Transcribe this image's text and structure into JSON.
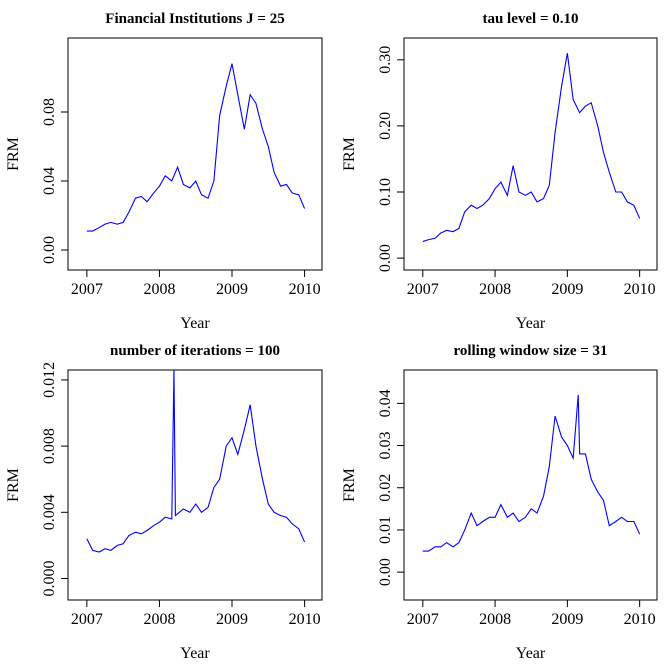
{
  "chart_data": [
    {
      "type": "line",
      "title": "Financial Institutions J = 25",
      "xlabel": "Year",
      "ylabel": "FRM",
      "color": "#0000ff",
      "x": [
        2007.0,
        2007.08,
        2007.17,
        2007.25,
        2007.33,
        2007.42,
        2007.5,
        2007.58,
        2007.67,
        2007.75,
        2007.83,
        2007.92,
        2008.0,
        2008.08,
        2008.17,
        2008.25,
        2008.33,
        2008.42,
        2008.5,
        2008.58,
        2008.67,
        2008.75,
        2008.83,
        2008.92,
        2009.0,
        2009.08,
        2009.17,
        2009.25,
        2009.33,
        2009.42,
        2009.5,
        2009.58,
        2009.67,
        2009.75,
        2009.83,
        2009.92,
        2010.0
      ],
      "values": [
        0.011,
        0.011,
        0.013,
        0.015,
        0.016,
        0.015,
        0.016,
        0.022,
        0.03,
        0.031,
        0.028,
        0.033,
        0.037,
        0.043,
        0.04,
        0.048,
        0.038,
        0.036,
        0.04,
        0.032,
        0.03,
        0.04,
        0.078,
        0.095,
        0.108,
        0.09,
        0.07,
        0.09,
        0.085,
        0.07,
        0.06,
        0.045,
        0.037,
        0.038,
        0.033,
        0.032,
        0.024
      ],
      "xlim": [
        2006.74,
        2010.24
      ],
      "ylim": [
        -0.0116,
        0.1229
      ],
      "xticks": [
        2007,
        2008,
        2009,
        2010
      ],
      "yticks": [
        {
          "value": 0,
          "label": "0.00"
        },
        {
          "value": 0.04,
          "label": "0.04"
        },
        {
          "value": 0.08,
          "label": "0.08"
        }
      ]
    },
    {
      "type": "line",
      "title": "tau level = 0.10",
      "xlabel": "Year",
      "ylabel": "FRM",
      "color": "#0000ff",
      "x": [
        2007.0,
        2007.08,
        2007.17,
        2007.25,
        2007.33,
        2007.42,
        2007.5,
        2007.58,
        2007.67,
        2007.75,
        2007.83,
        2007.92,
        2008.0,
        2008.08,
        2008.17,
        2008.25,
        2008.33,
        2008.42,
        2008.5,
        2008.58,
        2008.67,
        2008.75,
        2008.83,
        2008.92,
        2009.0,
        2009.08,
        2009.17,
        2009.25,
        2009.33,
        2009.42,
        2009.5,
        2009.58,
        2009.67,
        2009.75,
        2009.83,
        2009.92,
        2010.0
      ],
      "values": [
        0.025,
        0.028,
        0.03,
        0.038,
        0.042,
        0.04,
        0.045,
        0.07,
        0.08,
        0.075,
        0.08,
        0.09,
        0.105,
        0.115,
        0.095,
        0.14,
        0.1,
        0.095,
        0.1,
        0.085,
        0.09,
        0.11,
        0.19,
        0.26,
        0.31,
        0.24,
        0.22,
        0.23,
        0.235,
        0.2,
        0.16,
        0.13,
        0.1,
        0.1,
        0.085,
        0.08,
        0.06
      ],
      "xlim": [
        2006.74,
        2010.24
      ],
      "ylim": [
        -0.018,
        0.333
      ],
      "xticks": [
        2007,
        2008,
        2009,
        2010
      ],
      "yticks": [
        {
          "value": 0,
          "label": "0.00"
        },
        {
          "value": 0.1,
          "label": "0.10"
        },
        {
          "value": 0.2,
          "label": "0.20"
        },
        {
          "value": 0.3,
          "label": "0.30"
        }
      ]
    },
    {
      "type": "line",
      "title": "number of iterations = 100",
      "xlabel": "Year",
      "ylabel": "FRM",
      "color": "#0000ff",
      "x": [
        2007.0,
        2007.08,
        2007.17,
        2007.25,
        2007.33,
        2007.42,
        2007.5,
        2007.58,
        2007.67,
        2007.75,
        2007.83,
        2007.92,
        2008.0,
        2008.08,
        2008.17,
        2008.2,
        2008.22,
        2008.33,
        2008.42,
        2008.5,
        2008.58,
        2008.67,
        2008.75,
        2008.83,
        2008.92,
        2009.0,
        2009.08,
        2009.17,
        2009.25,
        2009.33,
        2009.42,
        2009.5,
        2009.58,
        2009.67,
        2009.75,
        2009.83,
        2009.92,
        2010.0
      ],
      "values": [
        0.0024,
        0.0017,
        0.0016,
        0.0018,
        0.0017,
        0.002,
        0.0021,
        0.0026,
        0.0028,
        0.0027,
        0.0029,
        0.0032,
        0.0034,
        0.0037,
        0.0036,
        0.0126,
        0.0038,
        0.0042,
        0.004,
        0.0045,
        0.004,
        0.0043,
        0.0055,
        0.006,
        0.008,
        0.0085,
        0.0075,
        0.009,
        0.0105,
        0.008,
        0.006,
        0.0045,
        0.004,
        0.0038,
        0.0037,
        0.0033,
        0.003,
        0.0022
      ],
      "xlim": [
        2006.74,
        2010.24
      ],
      "ylim": [
        -0.0013,
        0.0126
      ],
      "xticks": [
        2007,
        2008,
        2009,
        2010
      ],
      "yticks": [
        {
          "value": 0,
          "label": "0.000"
        },
        {
          "value": 0.004,
          "label": "0.004"
        },
        {
          "value": 0.008,
          "label": "0.008"
        },
        {
          "value": 0.012,
          "label": "0.012"
        }
      ]
    },
    {
      "type": "line",
      "title": "rolling window size = 31",
      "xlabel": "Year",
      "ylabel": "FRM",
      "color": "#0000ff",
      "x": [
        2007.0,
        2007.08,
        2007.17,
        2007.25,
        2007.33,
        2007.42,
        2007.5,
        2007.58,
        2007.67,
        2007.75,
        2007.83,
        2007.92,
        2008.0,
        2008.08,
        2008.17,
        2008.25,
        2008.33,
        2008.42,
        2008.5,
        2008.58,
        2008.67,
        2008.75,
        2008.83,
        2008.92,
        2009.0,
        2009.08,
        2009.15,
        2009.17,
        2009.25,
        2009.33,
        2009.42,
        2009.5,
        2009.58,
        2009.67,
        2009.75,
        2009.83,
        2009.92,
        2010.0
      ],
      "values": [
        0.005,
        0.005,
        0.006,
        0.006,
        0.007,
        0.006,
        0.007,
        0.01,
        0.014,
        0.011,
        0.012,
        0.013,
        0.013,
        0.016,
        0.013,
        0.014,
        0.012,
        0.013,
        0.015,
        0.014,
        0.018,
        0.025,
        0.037,
        0.032,
        0.03,
        0.027,
        0.042,
        0.028,
        0.028,
        0.022,
        0.019,
        0.017,
        0.011,
        0.012,
        0.013,
        0.012,
        0.012,
        0.009
      ],
      "xlim": [
        2006.74,
        2010.24
      ],
      "ylim": [
        -0.0066,
        0.0479
      ],
      "xticks": [
        2007,
        2008,
        2009,
        2010
      ],
      "yticks": [
        {
          "value": 0,
          "label": "0.00"
        },
        {
          "value": 0.01,
          "label": "0.01"
        },
        {
          "value": 0.02,
          "label": "0.02"
        },
        {
          "value": 0.03,
          "label": "0.03"
        },
        {
          "value": 0.04,
          "label": "0.04"
        }
      ]
    }
  ]
}
